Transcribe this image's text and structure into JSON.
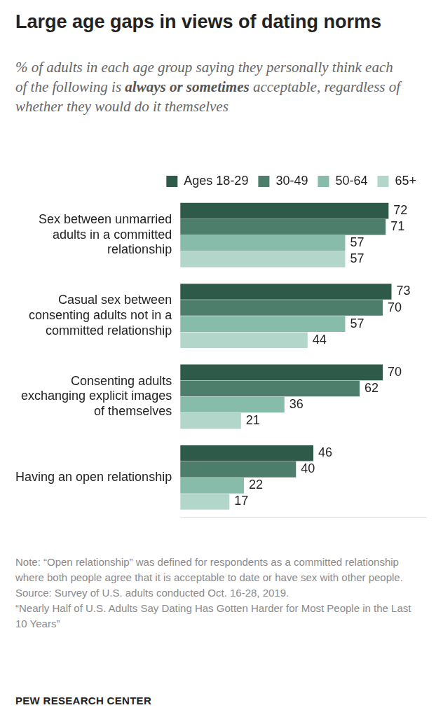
{
  "chart_data": {
    "type": "bar",
    "orientation": "horizontal",
    "title": "Large age gaps in views of dating norms",
    "subtitle": [
      "% of adults in each age group saying they personally think each of the following is ",
      "always or sometimes",
      " acceptable, regardless of whether they would do it themselves"
    ],
    "categories": [
      "Sex between unmarried adults in a committed relationship",
      "Casual sex between consenting adults not in a committed relationship",
      "Consenting adults exchanging explicit images of themselves",
      "Having an open relationship"
    ],
    "series": [
      {
        "name": "Ages 18-29",
        "color": "#2e5a49",
        "values": [
          72,
          73,
          70,
          46
        ]
      },
      {
        "name": "30-49",
        "color": "#4d7d6b",
        "values": [
          71,
          70,
          62,
          40
        ]
      },
      {
        "name": "50-64",
        "color": "#86bca9",
        "values": [
          57,
          57,
          36,
          22
        ]
      },
      {
        "name": "65+",
        "color": "#b2d7ca",
        "values": [
          57,
          44,
          21,
          17
        ]
      }
    ],
    "xlim": [
      0,
      85
    ],
    "grid": false,
    "legend": "top",
    "data_labels": true,
    "tick_labels": "y",
    "notes": [
      "Note: “Open relationship” was defined for respondents as a committed relationship where both people agree that it is acceptable to date or have sex with other people.",
      "Source: Survey of U.S. adults conducted Oct. 16-28, 2019.",
      "“Nearly Half of U.S. Adults Say Dating Has Gotten Harder for Most People in the Last 10 Years”"
    ],
    "credit": "PEW RESEARCH CENTER"
  }
}
